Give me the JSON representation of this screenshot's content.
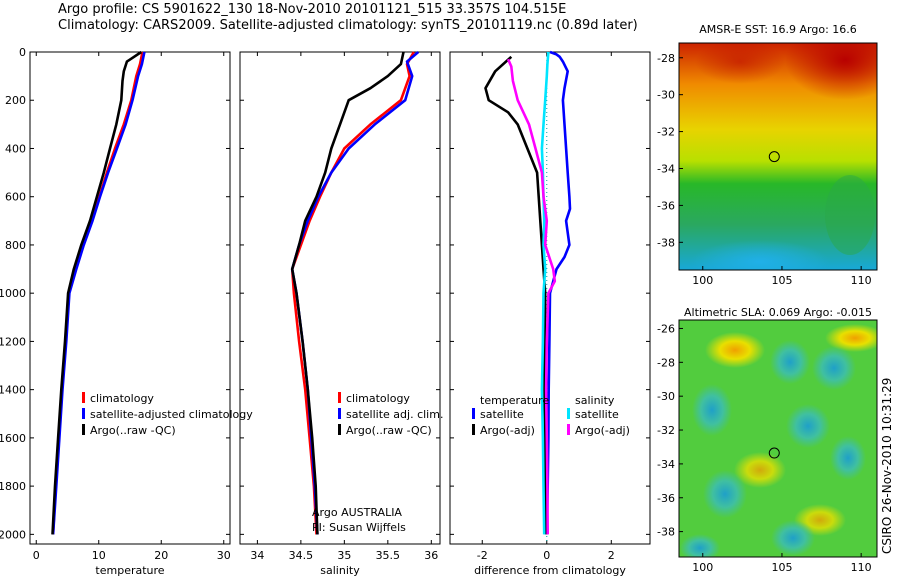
{
  "header": {
    "line1": "Argo profile: CS 5901622_130 18-Nov-2010 20101121_515 33.357S 104.515E",
    "line2": "Climatology: CARS2009. Satellite-adjusted climatology: synTS_20101119.nc (0.89d later)"
  },
  "side_label": "CSIRO 26-Nov-2010 10:31:29",
  "colors": {
    "climatology": "#ff0000",
    "satellite": "#0000ff",
    "argo": "#000000",
    "sat_sal": "#00e5ff",
    "argo_sal": "#ff00ff"
  },
  "chart_data": [
    {
      "type": "line",
      "xlabel": "temperature",
      "xlim": [
        -1,
        31
      ],
      "ylim": [
        2040,
        0
      ],
      "xticks": [
        "0",
        "10",
        "20",
        "30"
      ],
      "yticks": [
        "0",
        "200",
        "400",
        "600",
        "800",
        "1000",
        "1200",
        "1400",
        "1600",
        "1800",
        "2000"
      ],
      "legend": [
        "climatology",
        "satellite-adjusted climatology",
        "Argo(..raw -QC)"
      ],
      "series": [
        {
          "name": "climatology",
          "color": "#ff0000",
          "points": [
            [
              17,
              0
            ],
            [
              16.6,
              50
            ],
            [
              16,
              100
            ],
            [
              15.2,
              200
            ],
            [
              14,
              300
            ],
            [
              12.6,
              400
            ],
            [
              11.3,
              500
            ],
            [
              10.1,
              600
            ],
            [
              8.9,
              700
            ],
            [
              7.5,
              800
            ],
            [
              6.3,
              900
            ],
            [
              5.2,
              1000
            ],
            [
              4.7,
              1200
            ],
            [
              4.1,
              1400
            ],
            [
              3.6,
              1600
            ],
            [
              3.1,
              1800
            ],
            [
              2.7,
              2000
            ]
          ]
        },
        {
          "name": "satellite-adjusted climatology",
          "color": "#0000ff",
          "points": [
            [
              17.3,
              0
            ],
            [
              16.9,
              50
            ],
            [
              16.3,
              100
            ],
            [
              15.4,
              200
            ],
            [
              14.3,
              300
            ],
            [
              12.9,
              400
            ],
            [
              11.5,
              500
            ],
            [
              10.2,
              600
            ],
            [
              9,
              700
            ],
            [
              7.6,
              800
            ],
            [
              6.4,
              900
            ],
            [
              5.3,
              1000
            ],
            [
              4.8,
              1200
            ],
            [
              4.2,
              1400
            ],
            [
              3.7,
              1600
            ],
            [
              3.2,
              1800
            ],
            [
              2.7,
              2000
            ]
          ]
        },
        {
          "name": "Argo(..raw -QC)",
          "color": "#000000",
          "points": [
            [
              16.8,
              0
            ],
            [
              14.5,
              40
            ],
            [
              14,
              80
            ],
            [
              13.8,
              120
            ],
            [
              13.6,
              200
            ],
            [
              12.8,
              300
            ],
            [
              11.8,
              400
            ],
            [
              10.8,
              500
            ],
            [
              9.7,
              600
            ],
            [
              8.6,
              700
            ],
            [
              7.2,
              800
            ],
            [
              6,
              900
            ],
            [
              5.1,
              1000
            ],
            [
              4.6,
              1200
            ],
            [
              4,
              1400
            ],
            [
              3.5,
              1600
            ],
            [
              3,
              1800
            ],
            [
              2.6,
              2000
            ]
          ]
        }
      ]
    },
    {
      "type": "line",
      "xlabel": "salinity",
      "xlim": [
        33.8,
        36.1
      ],
      "ylim": [
        2040,
        0
      ],
      "xticks": [
        "34",
        "34.5",
        "35",
        "35.5",
        "36"
      ],
      "legend": [
        "climatology",
        "satellite adj. clim.",
        "Argo(..raw -QC)"
      ],
      "annotation": [
        "Argo AUSTRALIA",
        "PI: Susan Wijffels"
      ],
      "series": [
        {
          "name": "climatology",
          "color": "#ff0000",
          "points": [
            [
              35.8,
              0
            ],
            [
              35.72,
              50
            ],
            [
              35.75,
              100
            ],
            [
              35.65,
              200
            ],
            [
              35.3,
              300
            ],
            [
              35,
              400
            ],
            [
              34.85,
              500
            ],
            [
              34.72,
              600
            ],
            [
              34.6,
              700
            ],
            [
              34.5,
              800
            ],
            [
              34.4,
              900
            ],
            [
              34.42,
              1000
            ],
            [
              34.48,
              1200
            ],
            [
              34.55,
              1400
            ],
            [
              34.6,
              1600
            ],
            [
              34.65,
              1800
            ],
            [
              34.68,
              2000
            ]
          ]
        },
        {
          "name": "satellite adj. clim.",
          "color": "#0000ff",
          "points": [
            [
              35.85,
              0
            ],
            [
              35.72,
              40
            ],
            [
              35.78,
              100
            ],
            [
              35.7,
              200
            ],
            [
              35.35,
              300
            ],
            [
              35.05,
              400
            ],
            [
              34.85,
              500
            ],
            [
              34.7,
              600
            ],
            [
              34.58,
              700
            ],
            [
              34.48,
              800
            ],
            [
              34.4,
              900
            ],
            [
              34.45,
              1000
            ],
            [
              34.52,
              1200
            ],
            [
              34.58,
              1400
            ],
            [
              34.62,
              1600
            ],
            [
              34.66,
              1800
            ],
            [
              34.69,
              2000
            ]
          ]
        },
        {
          "name": "Argo(..raw -QC)",
          "color": "#000000",
          "points": [
            [
              35.68,
              0
            ],
            [
              35.65,
              50
            ],
            [
              35.5,
              100
            ],
            [
              35.3,
              150
            ],
            [
              35.05,
              200
            ],
            [
              34.95,
              300
            ],
            [
              34.85,
              400
            ],
            [
              34.78,
              500
            ],
            [
              34.68,
              600
            ],
            [
              34.55,
              700
            ],
            [
              34.48,
              800
            ],
            [
              34.4,
              900
            ],
            [
              34.45,
              1000
            ],
            [
              34.52,
              1200
            ],
            [
              34.58,
              1400
            ],
            [
              34.63,
              1600
            ],
            [
              34.67,
              1800
            ],
            [
              34.69,
              2000
            ]
          ]
        }
      ]
    },
    {
      "type": "line",
      "xlabel": "difference from climatology",
      "xlim": [
        -3,
        3.2
      ],
      "ylim": [
        2040,
        0
      ],
      "xticks": [
        "-2",
        "0",
        "2"
      ],
      "legend_groups": [
        {
          "title": "temperature",
          "items": [
            "satellite",
            "Argo(-adj)"
          ]
        },
        {
          "title": "salinity",
          "items": [
            "satellite",
            "Argo(-adj)"
          ]
        }
      ],
      "series": [
        {
          "name": "satellite",
          "group": "temperature",
          "color": "#0000ff",
          "points": [
            [
              0.1,
              0
            ],
            [
              0.3,
              10
            ],
            [
              0.4,
              20
            ],
            [
              0.5,
              40
            ],
            [
              0.65,
              80
            ],
            [
              0.55,
              150
            ],
            [
              0.5,
              200
            ],
            [
              0.55,
              300
            ],
            [
              0.6,
              400
            ],
            [
              0.65,
              500
            ],
            [
              0.7,
              600
            ],
            [
              0.72,
              650
            ],
            [
              0.6,
              700
            ],
            [
              0.7,
              800
            ],
            [
              0.55,
              850
            ],
            [
              0.3,
              900
            ],
            [
              0.1,
              1000
            ],
            [
              0.08,
              1200
            ],
            [
              0.06,
              1400
            ],
            [
              0.05,
              1600
            ],
            [
              0.03,
              1800
            ],
            [
              0,
              2000
            ]
          ]
        },
        {
          "name": "Argo(-adj)",
          "group": "temperature",
          "color": "#000000",
          "points": [
            [
              -1.1,
              20
            ],
            [
              -1.6,
              80
            ],
            [
              -1.9,
              150
            ],
            [
              -1.8,
              200
            ],
            [
              -1.2,
              250
            ],
            [
              -0.9,
              300
            ],
            [
              -0.6,
              400
            ],
            [
              -0.3,
              500
            ],
            [
              -0.25,
              600
            ],
            [
              -0.2,
              700
            ],
            [
              -0.15,
              800
            ],
            [
              -0.1,
              900
            ],
            [
              -0.05,
              1000
            ],
            [
              -0.06,
              1200
            ],
            [
              -0.07,
              1400
            ],
            [
              -0.05,
              1600
            ],
            [
              -0.04,
              1800
            ],
            [
              -0.03,
              2000
            ]
          ]
        },
        {
          "name": "satellite",
          "group": "salinity",
          "color": "#00e5ff",
          "points": [
            [
              0.05,
              0
            ],
            [
              0.02,
              50
            ],
            [
              0,
              100
            ],
            [
              -0.05,
              200
            ],
            [
              -0.1,
              300
            ],
            [
              -0.15,
              400
            ],
            [
              -0.12,
              500
            ],
            [
              -0.1,
              600
            ],
            [
              -0.08,
              700
            ],
            [
              -0.1,
              800
            ],
            [
              -0.05,
              900
            ],
            [
              -0.1,
              1000
            ],
            [
              -0.12,
              1200
            ],
            [
              -0.15,
              1400
            ],
            [
              -0.12,
              1600
            ],
            [
              -0.1,
              1800
            ],
            [
              -0.08,
              2000
            ]
          ]
        },
        {
          "name": "Argo(-adj)",
          "group": "salinity",
          "color": "#ff00ff",
          "points": [
            [
              -1.2,
              30
            ],
            [
              -1.1,
              60
            ],
            [
              -1.05,
              120
            ],
            [
              -0.9,
              200
            ],
            [
              -0.55,
              300
            ],
            [
              -0.35,
              400
            ],
            [
              -0.15,
              500
            ],
            [
              -0.1,
              600
            ],
            [
              0,
              700
            ],
            [
              -0.05,
              800
            ],
            [
              0.2,
              900
            ],
            [
              0.25,
              950
            ],
            [
              0.05,
              1000
            ],
            [
              0,
              1200
            ],
            [
              -0.02,
              1400
            ],
            [
              0,
              1600
            ],
            [
              0.02,
              1800
            ],
            [
              0.03,
              2000
            ]
          ]
        }
      ]
    },
    {
      "type": "heatmap",
      "title": "AMSR-E SST: 16.9  Argo: 16.6",
      "xlim": [
        98.5,
        111
      ],
      "ylim": [
        -39.5,
        -27.2
      ],
      "xticks": [
        "100",
        "105",
        "110"
      ],
      "yticks": [
        "-28",
        "-30",
        "-32",
        "-34",
        "-36",
        "-38"
      ],
      "profile_location": [
        104.515,
        -33.357
      ]
    },
    {
      "type": "heatmap",
      "title": "Altimetric SLA: 0.069  Argo: -0.015",
      "xlim": [
        98.5,
        111
      ],
      "ylim": [
        -39.5,
        -25.5
      ],
      "xticks": [
        "100",
        "105",
        "110"
      ],
      "yticks": [
        "-26",
        "-28",
        "-30",
        "-32",
        "-34",
        "-36",
        "-38"
      ],
      "profile_location": [
        104.515,
        -33.357
      ]
    }
  ]
}
